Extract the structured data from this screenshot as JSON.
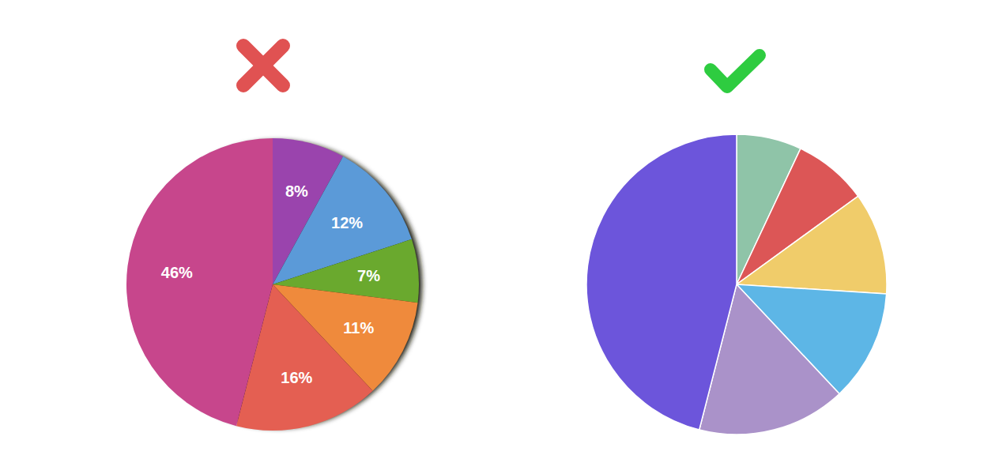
{
  "chart_data": [
    {
      "type": "pie",
      "values": [
        8,
        12,
        7,
        11,
        16,
        46
      ],
      "value_labels": [
        "8%",
        "12%",
        "7%",
        "11%",
        "16%",
        "46%"
      ],
      "colors": [
        "#9a44ad",
        "#5b9ad8",
        "#6aa92e",
        "#ef8a3c",
        "#e45f52",
        "#c7468c"
      ],
      "data_labels": true
    },
    {
      "type": "pie",
      "values": [
        7,
        8,
        11,
        12,
        16,
        46
      ],
      "colors": [
        "#8fc4a8",
        "#dc5656",
        "#f0cc6a",
        "#5db6e6",
        "#aa92c9",
        "#6c55db"
      ],
      "data_labels": false
    }
  ]
}
